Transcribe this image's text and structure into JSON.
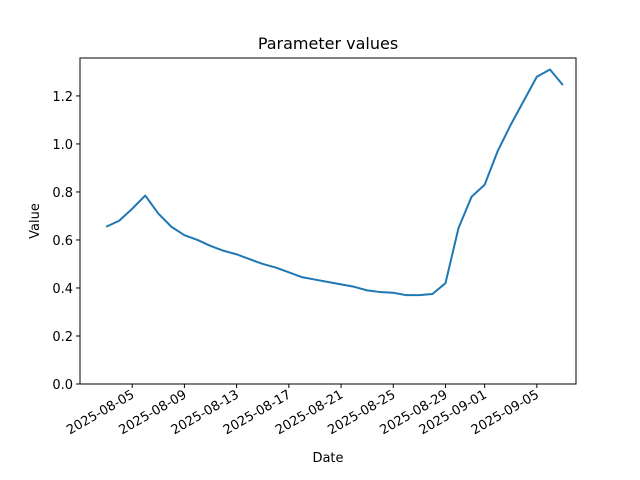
{
  "chart_data": {
    "type": "line",
    "title": "Parameter values",
    "x_label": "Date",
    "y_label": "Value",
    "x": [
      "2025-08-03",
      "2025-08-04",
      "2025-08-05",
      "2025-08-06",
      "2025-08-07",
      "2025-08-08",
      "2025-08-09",
      "2025-08-10",
      "2025-08-11",
      "2025-08-12",
      "2025-08-13",
      "2025-08-14",
      "2025-08-15",
      "2025-08-16",
      "2025-08-17",
      "2025-08-18",
      "2025-08-19",
      "2025-08-20",
      "2025-08-21",
      "2025-08-22",
      "2025-08-23",
      "2025-08-24",
      "2025-08-25",
      "2025-08-26",
      "2025-08-27",
      "2025-08-28",
      "2025-08-29",
      "2025-08-30",
      "2025-08-31",
      "2025-09-01",
      "2025-09-02",
      "2025-09-03",
      "2025-09-04",
      "2025-09-05",
      "2025-09-06",
      "2025-09-07"
    ],
    "series": [
      {
        "color": "#1f77b4",
        "values": [
          0.655,
          0.68,
          0.73,
          0.785,
          0.71,
          0.655,
          0.62,
          0.6,
          0.575,
          0.555,
          0.54,
          0.52,
          0.5,
          0.485,
          0.465,
          0.445,
          0.435,
          0.425,
          0.415,
          0.405,
          0.39,
          0.383,
          0.38,
          0.37,
          0.37,
          0.375,
          0.42,
          0.65,
          0.78,
          0.83,
          0.97,
          1.08,
          1.18,
          1.28,
          1.31,
          1.245
        ]
      }
    ],
    "xlim": [
      "2025-08-01",
      "2025-09-08"
    ],
    "xticks": [
      "2025-08-05",
      "2025-08-09",
      "2025-08-13",
      "2025-08-17",
      "2025-08-21",
      "2025-08-25",
      "2025-08-29",
      "2025-09-01",
      "2025-09-05"
    ],
    "ylim": [
      0,
      1.358
    ],
    "yticks": [
      {
        "value": 0,
        "label": "0.0"
      },
      0.2,
      0.4,
      0.6,
      0.8,
      {
        "value": 1,
        "label": "1.0"
      },
      1.2
    ]
  }
}
